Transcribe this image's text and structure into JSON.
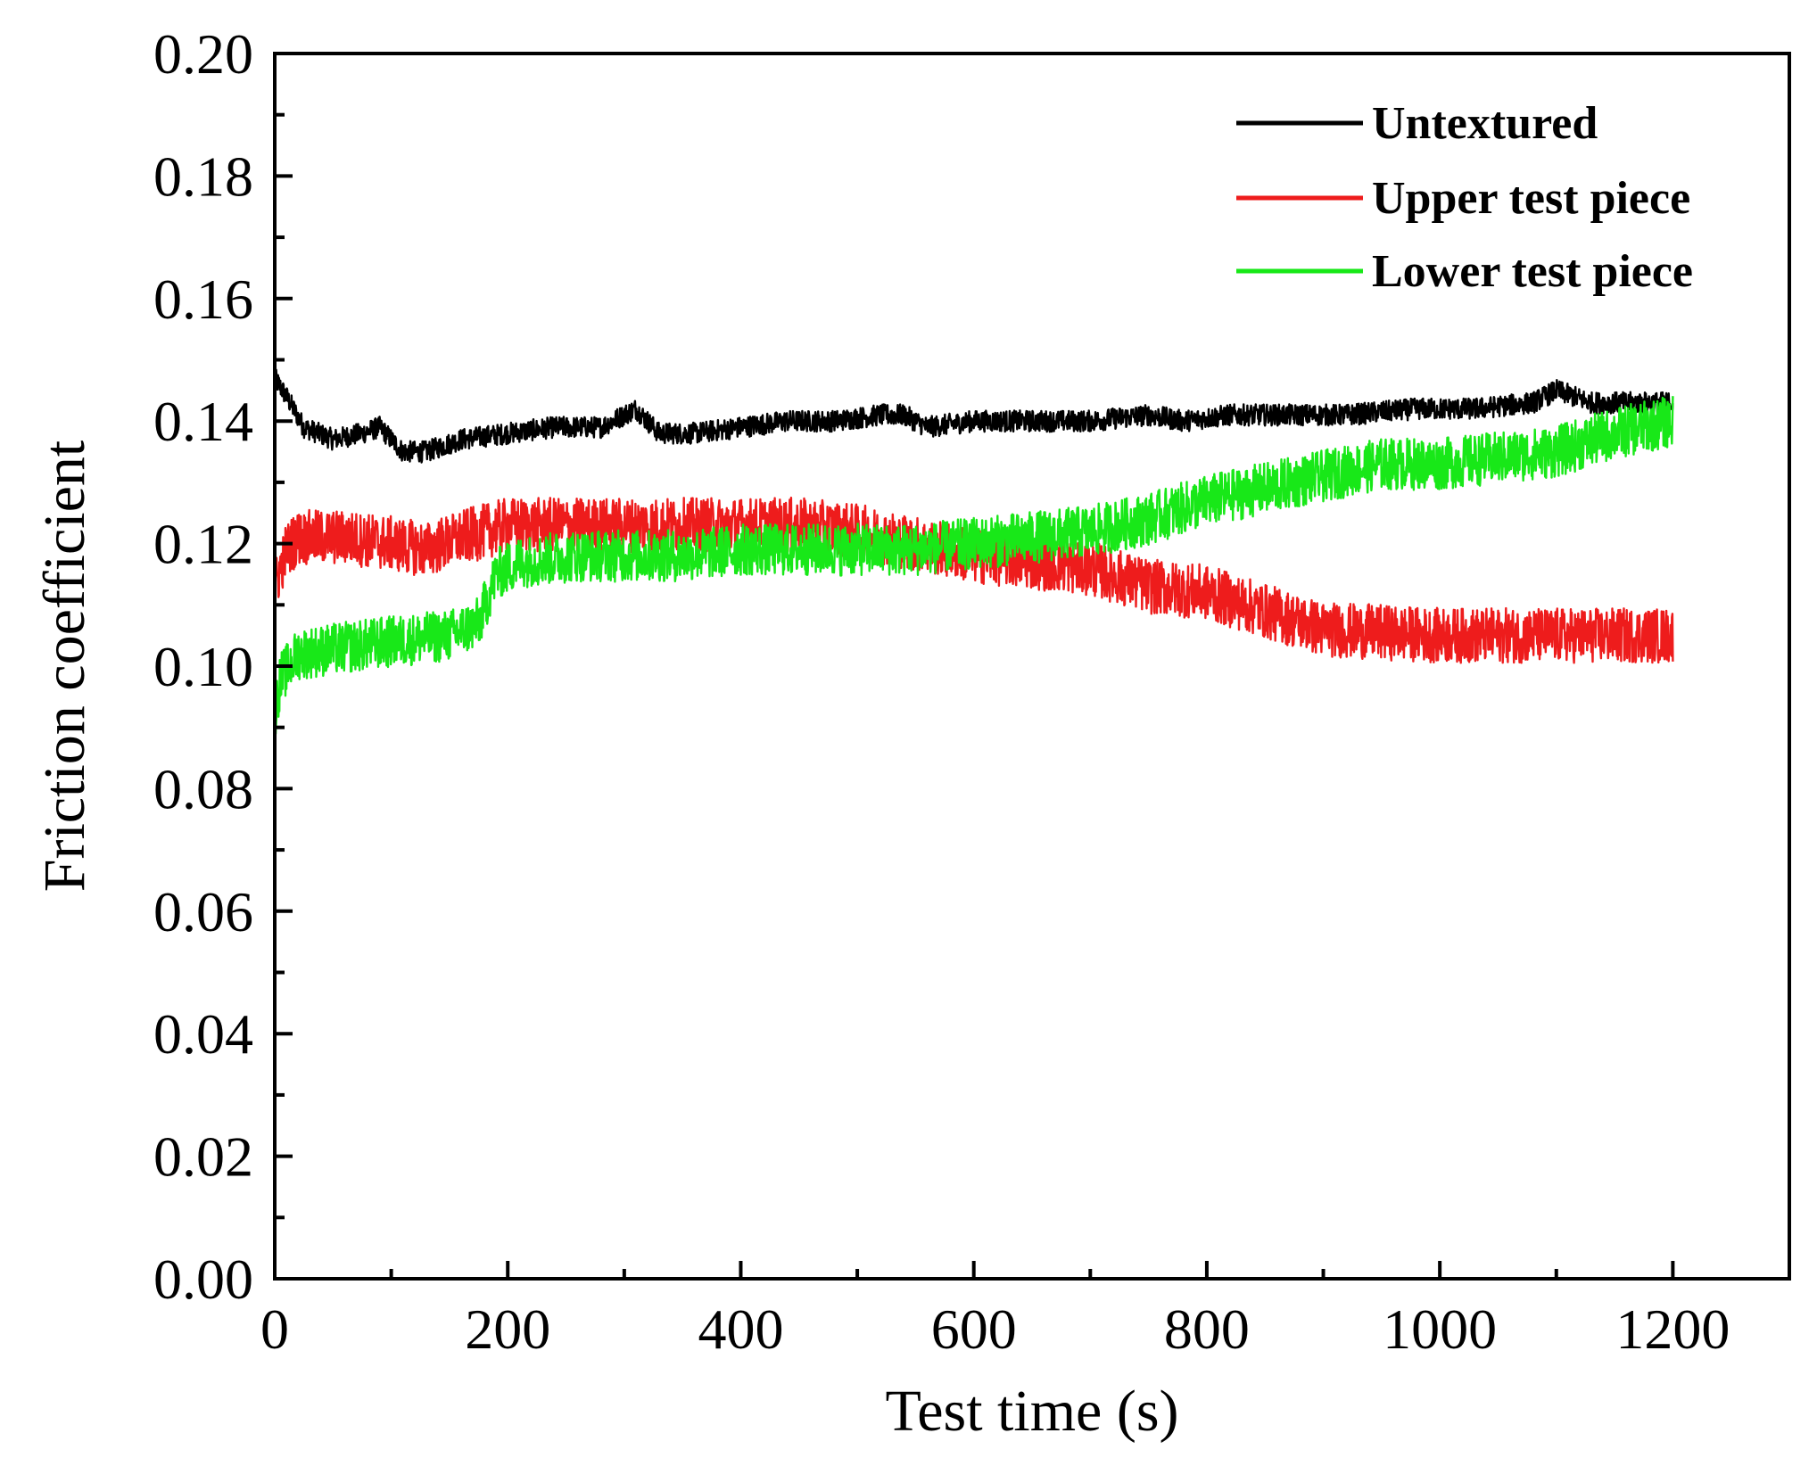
{
  "chart_data": {
    "type": "line",
    "title": "",
    "xlabel": "Test time (s)",
    "ylabel": "Friction coefficient",
    "xlim": [
      0,
      1300
    ],
    "ylim": [
      0.0,
      0.2
    ],
    "x_ticks": [
      "0",
      "200",
      "400",
      "600",
      "800",
      "1000",
      "1200"
    ],
    "y_ticks": [
      "0.00",
      "0.02",
      "0.04",
      "0.06",
      "0.08",
      "0.10",
      "0.12",
      "0.14",
      "0.16",
      "0.18",
      "0.20"
    ],
    "grid": false,
    "legend_position": "top-right",
    "series": [
      {
        "name": "Untextured",
        "color": "#000000",
        "noise": 0.0035,
        "x": [
          0,
          10,
          25,
          50,
          75,
          90,
          110,
          130,
          160,
          200,
          240,
          280,
          300,
          310,
          330,
          360,
          400,
          440,
          480,
          520,
          540,
          560,
          600,
          650,
          700,
          750,
          780,
          820,
          870,
          920,
          980,
          1030,
          1080,
          1100,
          1130,
          1170,
          1200
        ],
        "y": [
          0.147,
          0.144,
          0.139,
          0.137,
          0.138,
          0.139,
          0.135,
          0.135,
          0.137,
          0.138,
          0.139,
          0.139,
          0.141,
          0.142,
          0.138,
          0.138,
          0.139,
          0.14,
          0.14,
          0.141,
          0.141,
          0.139,
          0.14,
          0.14,
          0.14,
          0.141,
          0.14,
          0.141,
          0.141,
          0.141,
          0.142,
          0.142,
          0.143,
          0.145,
          0.143,
          0.143,
          0.143
        ]
      },
      {
        "name": "Upper test piece",
        "color": "#ee1c1c",
        "noise": 0.009,
        "x": [
          0,
          10,
          20,
          60,
          100,
          130,
          160,
          200,
          250,
          300,
          350,
          400,
          450,
          500,
          550,
          600,
          650,
          700,
          750,
          800,
          850,
          900,
          1000,
          1100,
          1150,
          1200
        ],
        "y": [
          0.113,
          0.119,
          0.121,
          0.121,
          0.12,
          0.119,
          0.121,
          0.123,
          0.123,
          0.123,
          0.123,
          0.123,
          0.123,
          0.122,
          0.12,
          0.118,
          0.117,
          0.116,
          0.113,
          0.112,
          0.109,
          0.106,
          0.105,
          0.105,
          0.105,
          0.105
        ]
      },
      {
        "name": "Lower test piece",
        "color": "#18e818",
        "noise": 0.0085,
        "x": [
          0,
          5,
          20,
          60,
          100,
          150,
          175,
          190,
          210,
          260,
          300,
          350,
          400,
          450,
          500,
          550,
          600,
          650,
          700,
          750,
          800,
          850,
          900,
          950,
          1000,
          1050,
          1100,
          1150,
          1200
        ],
        "y": [
          0.092,
          0.098,
          0.102,
          0.103,
          0.104,
          0.105,
          0.107,
          0.115,
          0.117,
          0.118,
          0.118,
          0.118,
          0.119,
          0.119,
          0.119,
          0.119,
          0.12,
          0.121,
          0.122,
          0.124,
          0.127,
          0.129,
          0.131,
          0.133,
          0.133,
          0.134,
          0.135,
          0.138,
          0.14
        ]
      }
    ]
  }
}
